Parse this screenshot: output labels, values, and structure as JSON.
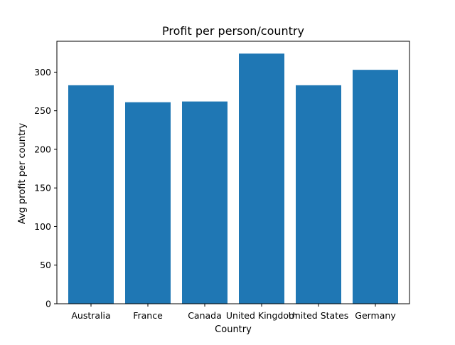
{
  "chart_data": {
    "type": "bar",
    "title": "Profit per person/country",
    "xlabel": "Country",
    "ylabel": "Avg profit per country",
    "categories": [
      "Australia",
      "France",
      "Canada",
      "United Kingdom",
      "United States",
      "Germany"
    ],
    "values": [
      283,
      261,
      262,
      324,
      283,
      303
    ],
    "ylim": [
      0,
      340
    ],
    "yticks": [
      0,
      50,
      100,
      150,
      200,
      250,
      300
    ],
    "grid": false,
    "bar_color": "#1f77b4"
  }
}
